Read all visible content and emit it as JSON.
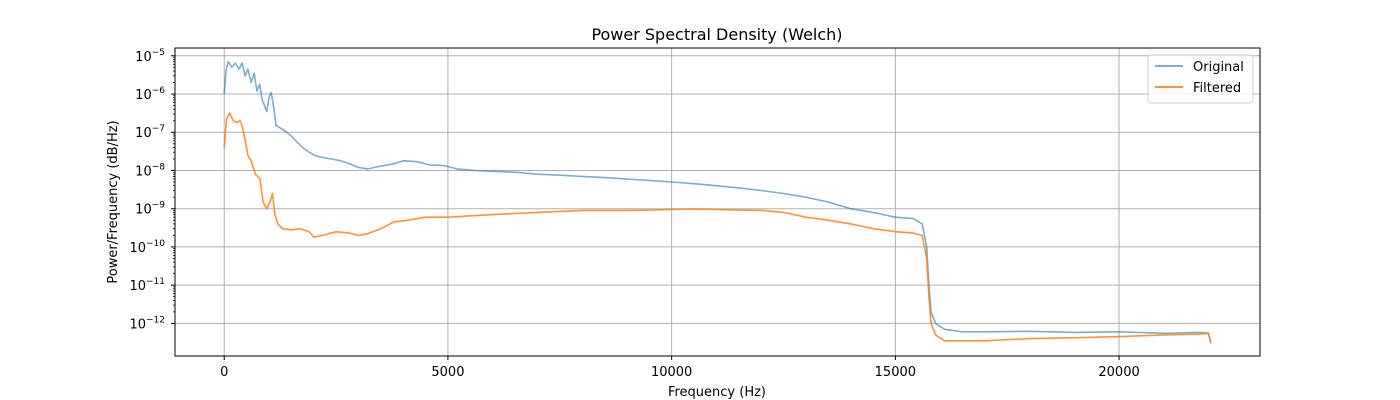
{
  "chart_data": {
    "type": "line",
    "title": "Power Spectral Density (Welch)",
    "xlabel": "Frequency (Hz)",
    "ylabel": "Power/Frequency (dB/Hz)",
    "xlim": [
      -1100,
      23150
    ],
    "ylim": [
      1.4e-13,
      1.6e-05
    ],
    "yscale": "log",
    "grid": true,
    "legend": "top-right",
    "x_ticks": [
      {
        "value": 0,
        "label": "0"
      },
      {
        "value": 5000,
        "label": "5000"
      },
      {
        "value": 10000,
        "label": "10000"
      },
      {
        "value": 15000,
        "label": "15000"
      },
      {
        "value": 20000,
        "label": "20000"
      }
    ],
    "y_ticks": [
      {
        "exp": -5,
        "value": 1e-05
      },
      {
        "exp": -6,
        "value": 1e-06
      },
      {
        "exp": -7,
        "value": 1e-07
      },
      {
        "exp": -8,
        "value": 1e-08
      },
      {
        "exp": -9,
        "value": 1e-09
      },
      {
        "exp": -10,
        "value": 1e-10
      },
      {
        "exp": -11,
        "value": 1e-11
      },
      {
        "exp": -12,
        "value": 1e-12
      }
    ],
    "series": [
      {
        "name": "Original",
        "color": "#1f77b4",
        "opacity": 0.6,
        "points": [
          [
            0,
            1e-06
          ],
          [
            40,
            4e-06
          ],
          [
            90,
            7e-06
          ],
          [
            170,
            5e-06
          ],
          [
            250,
            6.5e-06
          ],
          [
            330,
            4.5e-06
          ],
          [
            400,
            6.5e-06
          ],
          [
            470,
            3e-06
          ],
          [
            530,
            4.5e-06
          ],
          [
            600,
            2e-06
          ],
          [
            670,
            3.5e-06
          ],
          [
            730,
            1.2e-06
          ],
          [
            790,
            1.8e-06
          ],
          [
            850,
            7e-07
          ],
          [
            900,
            5e-07
          ],
          [
            950,
            3.5e-07
          ],
          [
            1000,
            8e-07
          ],
          [
            1050,
            1.1e-06
          ],
          [
            1100,
            5e-07
          ],
          [
            1160,
            1.5e-07
          ],
          [
            1300,
            1.2e-07
          ],
          [
            1450,
            9e-08
          ],
          [
            1600,
            6e-08
          ],
          [
            1750,
            4e-08
          ],
          [
            1900,
            3e-08
          ],
          [
            2050,
            2.4e-08
          ],
          [
            2200,
            2.2e-08
          ],
          [
            2400,
            2e-08
          ],
          [
            2600,
            1.8e-08
          ],
          [
            2800,
            1.5e-08
          ],
          [
            3000,
            1.2e-08
          ],
          [
            3200,
            1.1e-08
          ],
          [
            3500,
            1.3e-08
          ],
          [
            3800,
            1.5e-08
          ],
          [
            4000,
            1.8e-08
          ],
          [
            4300,
            1.7e-08
          ],
          [
            4600,
            1.4e-08
          ],
          [
            4900,
            1.35e-08
          ],
          [
            5200,
            1.1e-08
          ],
          [
            5600,
            1e-08
          ],
          [
            6000,
            9.5e-09
          ],
          [
            6500,
            9e-09
          ],
          [
            7000,
            8e-09
          ],
          [
            7500,
            7.5e-09
          ],
          [
            8000,
            7e-09
          ],
          [
            8500,
            6.5e-09
          ],
          [
            9000,
            6e-09
          ],
          [
            9500,
            5.5e-09
          ],
          [
            10000,
            5e-09
          ],
          [
            10500,
            4.5e-09
          ],
          [
            11000,
            4e-09
          ],
          [
            11500,
            3.5e-09
          ],
          [
            12000,
            3e-09
          ],
          [
            12500,
            2.5e-09
          ],
          [
            13000,
            2e-09
          ],
          [
            13500,
            1.5e-09
          ],
          [
            14000,
            1e-09
          ],
          [
            14500,
            8e-10
          ],
          [
            15000,
            6e-10
          ],
          [
            15400,
            5.5e-10
          ],
          [
            15600,
            4e-10
          ],
          [
            15700,
            1e-10
          ],
          [
            15750,
            1e-11
          ],
          [
            15800,
            2e-12
          ],
          [
            15900,
            1e-12
          ],
          [
            16100,
            7e-13
          ],
          [
            16500,
            6e-13
          ],
          [
            17000,
            6e-13
          ],
          [
            18000,
            6.2e-13
          ],
          [
            19000,
            5.8e-13
          ],
          [
            20000,
            6e-13
          ],
          [
            21000,
            5.5e-13
          ],
          [
            21800,
            5.8e-13
          ],
          [
            22000,
            5.5e-13
          ],
          [
            22050,
            3e-13
          ]
        ]
      },
      {
        "name": "Filtered",
        "color": "#ff7f0e",
        "opacity": 0.85,
        "points": [
          [
            0,
            4e-08
          ],
          [
            50,
            2.2e-07
          ],
          [
            120,
            3.2e-07
          ],
          [
            200,
            2e-07
          ],
          [
            280,
            1.8e-07
          ],
          [
            350,
            2e-07
          ],
          [
            400,
            1.5e-07
          ],
          [
            470,
            6e-08
          ],
          [
            530,
            2.5e-08
          ],
          [
            600,
            1.8e-08
          ],
          [
            700,
            8e-09
          ],
          [
            800,
            6e-09
          ],
          [
            870,
            1.5e-09
          ],
          [
            950,
            1e-09
          ],
          [
            1020,
            1.5e-09
          ],
          [
            1080,
            2.5e-09
          ],
          [
            1130,
            7e-10
          ],
          [
            1200,
            4e-10
          ],
          [
            1300,
            3e-10
          ],
          [
            1500,
            2.8e-10
          ],
          [
            1700,
            3e-10
          ],
          [
            1900,
            2.5e-10
          ],
          [
            2000,
            1.8e-10
          ],
          [
            2200,
            2e-10
          ],
          [
            2500,
            2.5e-10
          ],
          [
            2800,
            2.3e-10
          ],
          [
            3000,
            2e-10
          ],
          [
            3200,
            2.2e-10
          ],
          [
            3500,
            3e-10
          ],
          [
            3800,
            4.5e-10
          ],
          [
            4100,
            5e-10
          ],
          [
            4500,
            6e-10
          ],
          [
            5000,
            6e-10
          ],
          [
            5500,
            6.5e-10
          ],
          [
            6000,
            7e-10
          ],
          [
            6500,
            7.5e-10
          ],
          [
            7000,
            8e-10
          ],
          [
            7500,
            8.5e-10
          ],
          [
            8000,
            9e-10
          ],
          [
            8500,
            9e-10
          ],
          [
            9000,
            9e-10
          ],
          [
            9500,
            9.2e-10
          ],
          [
            10000,
            9.5e-10
          ],
          [
            10500,
            9.8e-10
          ],
          [
            11000,
            9.5e-10
          ],
          [
            11500,
            9.2e-10
          ],
          [
            12000,
            9e-10
          ],
          [
            12500,
            8e-10
          ],
          [
            13000,
            6e-10
          ],
          [
            13500,
            5e-10
          ],
          [
            14000,
            4e-10
          ],
          [
            14500,
            3e-10
          ],
          [
            15000,
            2.5e-10
          ],
          [
            15400,
            2.3e-10
          ],
          [
            15600,
            2e-10
          ],
          [
            15700,
            5e-11
          ],
          [
            15750,
            5e-12
          ],
          [
            15800,
            1e-12
          ],
          [
            15900,
            5e-13
          ],
          [
            16100,
            3.5e-13
          ],
          [
            16500,
            3.5e-13
          ],
          [
            17000,
            3.5e-13
          ],
          [
            18000,
            4e-13
          ],
          [
            19000,
            4.2e-13
          ],
          [
            20000,
            4.5e-13
          ],
          [
            21000,
            5e-13
          ],
          [
            21800,
            5.2e-13
          ],
          [
            22000,
            5.5e-13
          ],
          [
            22050,
            3e-13
          ]
        ]
      }
    ]
  }
}
